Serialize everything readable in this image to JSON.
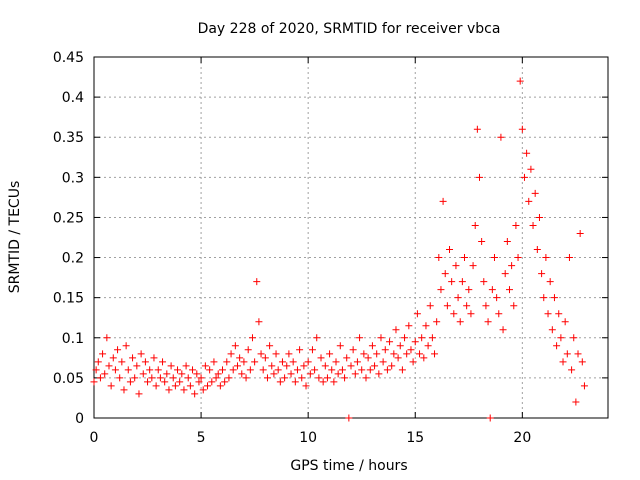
{
  "chart_data": {
    "type": "scatter",
    "title": "Day 228 of 2020, SRMTID for receiver vbca",
    "xlabel": "GPS time / hours",
    "ylabel": "SRMTID / TECUs",
    "xlim": [
      0,
      24
    ],
    "ylim": [
      0,
      0.45
    ],
    "grid": true,
    "marker": "plus",
    "color": "#ff0000",
    "xticks": [
      {
        "value": 0,
        "label": "0"
      },
      {
        "value": 5,
        "label": "5"
      },
      {
        "value": 10,
        "label": "10"
      },
      {
        "value": 15,
        "label": "15"
      },
      {
        "value": 20,
        "label": "20"
      }
    ],
    "yticks": [
      {
        "value": 0,
        "label": "0"
      },
      {
        "value": 0.05,
        "label": "0.05"
      },
      {
        "value": 0.1,
        "label": "0.1"
      },
      {
        "value": 0.15,
        "label": "0.15"
      },
      {
        "value": 0.2,
        "label": "0.2"
      },
      {
        "value": 0.25,
        "label": "0.25"
      },
      {
        "value": 0.3,
        "label": "0.3"
      },
      {
        "value": 0.35,
        "label": "0.35"
      },
      {
        "value": 0.4,
        "label": "0.4"
      },
      {
        "value": 0.45,
        "label": "0.45"
      }
    ],
    "series": [
      {
        "name": "SRMTID",
        "points": [
          [
            0.0,
            0.045
          ],
          [
            0.1,
            0.06
          ],
          [
            0.2,
            0.07
          ],
          [
            0.3,
            0.05
          ],
          [
            0.4,
            0.08
          ],
          [
            0.5,
            0.055
          ],
          [
            0.6,
            0.1
          ],
          [
            0.7,
            0.065
          ],
          [
            0.8,
            0.04
          ],
          [
            0.9,
            0.075
          ],
          [
            1.0,
            0.06
          ],
          [
            1.1,
            0.085
          ],
          [
            1.2,
            0.05
          ],
          [
            1.3,
            0.07
          ],
          [
            1.4,
            0.035
          ],
          [
            1.5,
            0.09
          ],
          [
            1.6,
            0.06
          ],
          [
            1.7,
            0.045
          ],
          [
            1.8,
            0.075
          ],
          [
            1.9,
            0.05
          ],
          [
            2.0,
            0.065
          ],
          [
            2.1,
            0.03
          ],
          [
            2.2,
            0.08
          ],
          [
            2.3,
            0.055
          ],
          [
            2.4,
            0.07
          ],
          [
            2.5,
            0.045
          ],
          [
            2.6,
            0.06
          ],
          [
            2.7,
            0.05
          ],
          [
            2.8,
            0.075
          ],
          [
            2.9,
            0.04
          ],
          [
            3.0,
            0.06
          ],
          [
            3.1,
            0.05
          ],
          [
            3.2,
            0.07
          ],
          [
            3.3,
            0.045
          ],
          [
            3.4,
            0.055
          ],
          [
            3.5,
            0.035
          ],
          [
            3.6,
            0.065
          ],
          [
            3.7,
            0.05
          ],
          [
            3.8,
            0.04
          ],
          [
            3.9,
            0.06
          ],
          [
            4.0,
            0.045
          ],
          [
            4.1,
            0.055
          ],
          [
            4.2,
            0.035
          ],
          [
            4.3,
            0.065
          ],
          [
            4.4,
            0.05
          ],
          [
            4.5,
            0.04
          ],
          [
            4.6,
            0.06
          ],
          [
            4.7,
            0.03
          ],
          [
            4.8,
            0.055
          ],
          [
            4.9,
            0.045
          ],
          [
            5.0,
            0.05
          ],
          [
            5.1,
            0.035
          ],
          [
            5.2,
            0.065
          ],
          [
            5.3,
            0.04
          ],
          [
            5.4,
            0.06
          ],
          [
            5.5,
            0.045
          ],
          [
            5.6,
            0.07
          ],
          [
            5.7,
            0.05
          ],
          [
            5.8,
            0.055
          ],
          [
            5.9,
            0.04
          ],
          [
            6.0,
            0.06
          ],
          [
            6.1,
            0.045
          ],
          [
            6.2,
            0.07
          ],
          [
            6.3,
            0.05
          ],
          [
            6.4,
            0.08
          ],
          [
            6.5,
            0.06
          ],
          [
            6.6,
            0.09
          ],
          [
            6.7,
            0.065
          ],
          [
            6.8,
            0.075
          ],
          [
            6.9,
            0.055
          ],
          [
            7.0,
            0.07
          ],
          [
            7.1,
            0.05
          ],
          [
            7.2,
            0.085
          ],
          [
            7.3,
            0.06
          ],
          [
            7.4,
            0.1
          ],
          [
            7.5,
            0.07
          ],
          [
            7.6,
            0.17
          ],
          [
            7.7,
            0.12
          ],
          [
            7.8,
            0.08
          ],
          [
            7.9,
            0.06
          ],
          [
            8.0,
            0.075
          ],
          [
            8.1,
            0.05
          ],
          [
            8.2,
            0.09
          ],
          [
            8.3,
            0.065
          ],
          [
            8.4,
            0.055
          ],
          [
            8.5,
            0.08
          ],
          [
            8.6,
            0.06
          ],
          [
            8.7,
            0.045
          ],
          [
            8.8,
            0.07
          ],
          [
            8.9,
            0.05
          ],
          [
            9.0,
            0.065
          ],
          [
            9.1,
            0.08
          ],
          [
            9.2,
            0.055
          ],
          [
            9.3,
            0.07
          ],
          [
            9.4,
            0.045
          ],
          [
            9.5,
            0.06
          ],
          [
            9.6,
            0.085
          ],
          [
            9.7,
            0.05
          ],
          [
            9.8,
            0.065
          ],
          [
            9.9,
            0.04
          ],
          [
            10.0,
            0.07
          ],
          [
            10.1,
            0.055
          ],
          [
            10.2,
            0.085
          ],
          [
            10.3,
            0.06
          ],
          [
            10.4,
            0.1
          ],
          [
            10.5,
            0.05
          ],
          [
            10.6,
            0.075
          ],
          [
            10.7,
            0.045
          ],
          [
            10.8,
            0.065
          ],
          [
            10.9,
            0.05
          ],
          [
            11.0,
            0.08
          ],
          [
            11.1,
            0.06
          ],
          [
            11.2,
            0.045
          ],
          [
            11.3,
            0.07
          ],
          [
            11.4,
            0.055
          ],
          [
            11.5,
            0.09
          ],
          [
            11.6,
            0.06
          ],
          [
            11.7,
            0.05
          ],
          [
            11.8,
            0.075
          ],
          [
            11.9,
            0.0
          ],
          [
            12.0,
            0.065
          ],
          [
            12.1,
            0.085
          ],
          [
            12.2,
            0.055
          ],
          [
            12.3,
            0.07
          ],
          [
            12.4,
            0.1
          ],
          [
            12.5,
            0.06
          ],
          [
            12.6,
            0.08
          ],
          [
            12.7,
            0.05
          ],
          [
            12.8,
            0.075
          ],
          [
            12.9,
            0.06
          ],
          [
            13.0,
            0.09
          ],
          [
            13.1,
            0.065
          ],
          [
            13.2,
            0.08
          ],
          [
            13.3,
            0.055
          ],
          [
            13.4,
            0.1
          ],
          [
            13.5,
            0.07
          ],
          [
            13.6,
            0.085
          ],
          [
            13.7,
            0.06
          ],
          [
            13.8,
            0.095
          ],
          [
            13.9,
            0.065
          ],
          [
            14.0,
            0.08
          ],
          [
            14.1,
            0.11
          ],
          [
            14.2,
            0.075
          ],
          [
            14.3,
            0.09
          ],
          [
            14.4,
            0.06
          ],
          [
            14.5,
            0.1
          ],
          [
            14.6,
            0.08
          ],
          [
            14.7,
            0.115
          ],
          [
            14.8,
            0.085
          ],
          [
            14.9,
            0.07
          ],
          [
            15.0,
            0.095
          ],
          [
            15.1,
            0.13
          ],
          [
            15.2,
            0.08
          ],
          [
            15.3,
            0.1
          ],
          [
            15.4,
            0.075
          ],
          [
            15.5,
            0.115
          ],
          [
            15.6,
            0.09
          ],
          [
            15.7,
            0.14
          ],
          [
            15.8,
            0.1
          ],
          [
            15.9,
            0.08
          ],
          [
            16.0,
            0.12
          ],
          [
            16.1,
            0.2
          ],
          [
            16.2,
            0.16
          ],
          [
            16.3,
            0.27
          ],
          [
            16.4,
            0.18
          ],
          [
            16.5,
            0.14
          ],
          [
            16.6,
            0.21
          ],
          [
            16.7,
            0.17
          ],
          [
            16.8,
            0.13
          ],
          [
            16.9,
            0.19
          ],
          [
            17.0,
            0.15
          ],
          [
            17.1,
            0.12
          ],
          [
            17.2,
            0.17
          ],
          [
            17.3,
            0.2
          ],
          [
            17.4,
            0.14
          ],
          [
            17.5,
            0.16
          ],
          [
            17.6,
            0.13
          ],
          [
            17.7,
            0.19
          ],
          [
            17.8,
            0.24
          ],
          [
            17.9,
            0.36
          ],
          [
            18.0,
            0.3
          ],
          [
            18.1,
            0.22
          ],
          [
            18.2,
            0.17
          ],
          [
            18.3,
            0.14
          ],
          [
            18.4,
            0.12
          ],
          [
            18.5,
            0.0
          ],
          [
            18.6,
            0.16
          ],
          [
            18.7,
            0.2
          ],
          [
            18.8,
            0.15
          ],
          [
            18.9,
            0.13
          ],
          [
            19.0,
            0.35
          ],
          [
            19.1,
            0.11
          ],
          [
            19.2,
            0.18
          ],
          [
            19.3,
            0.22
          ],
          [
            19.4,
            0.16
          ],
          [
            19.5,
            0.19
          ],
          [
            19.6,
            0.14
          ],
          [
            19.7,
            0.24
          ],
          [
            19.8,
            0.2
          ],
          [
            19.9,
            0.42
          ],
          [
            20.0,
            0.36
          ],
          [
            20.1,
            0.3
          ],
          [
            20.2,
            0.33
          ],
          [
            20.3,
            0.27
          ],
          [
            20.4,
            0.31
          ],
          [
            20.5,
            0.24
          ],
          [
            20.6,
            0.28
          ],
          [
            20.7,
            0.21
          ],
          [
            20.8,
            0.25
          ],
          [
            20.9,
            0.18
          ],
          [
            21.0,
            0.15
          ],
          [
            21.1,
            0.2
          ],
          [
            21.2,
            0.13
          ],
          [
            21.3,
            0.17
          ],
          [
            21.4,
            0.11
          ],
          [
            21.5,
            0.15
          ],
          [
            21.6,
            0.09
          ],
          [
            21.7,
            0.13
          ],
          [
            21.8,
            0.1
          ],
          [
            21.9,
            0.07
          ],
          [
            22.0,
            0.12
          ],
          [
            22.1,
            0.08
          ],
          [
            22.2,
            0.2
          ],
          [
            22.3,
            0.06
          ],
          [
            22.4,
            0.1
          ],
          [
            22.5,
            0.02
          ],
          [
            22.6,
            0.08
          ],
          [
            22.7,
            0.23
          ],
          [
            22.8,
            0.07
          ],
          [
            22.9,
            0.04
          ]
        ]
      }
    ]
  }
}
